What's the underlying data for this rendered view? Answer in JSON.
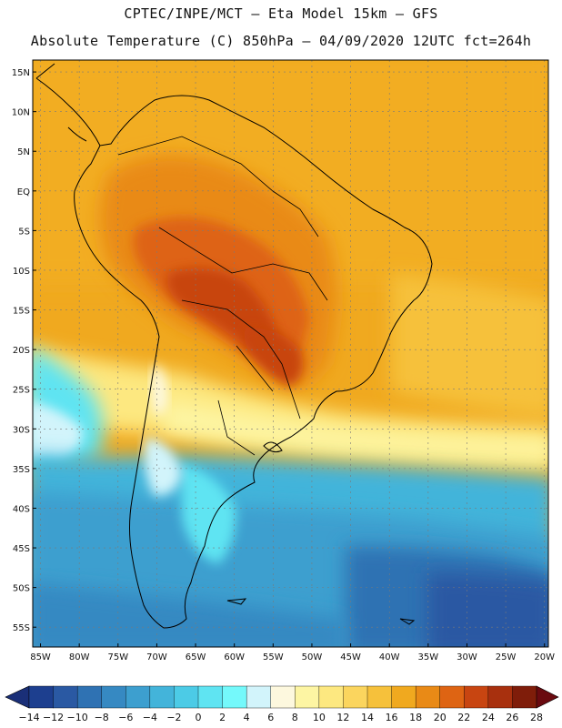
{
  "header": {
    "line1": "CPTEC/INPE/MCT –  Eta Model 15km – GFS",
    "line2": "Absolute Temperature (C) 850hPa – 04/09/2020 12UTC fct=264h"
  },
  "map": {
    "lat_labels": [
      "15N",
      "10N",
      "5N",
      "EQ",
      "5S",
      "10S",
      "15S",
      "20S",
      "25S",
      "30S",
      "35S",
      "40S",
      "45S",
      "50S",
      "55S"
    ],
    "lat_values": [
      15,
      10,
      5,
      0,
      -5,
      -10,
      -15,
      -20,
      -25,
      -30,
      -35,
      -40,
      -45,
      -50,
      -55
    ],
    "lon_labels": [
      "85W",
      "80W",
      "75W",
      "70W",
      "65W",
      "60W",
      "55W",
      "50W",
      "45W",
      "40W",
      "35W",
      "30W",
      "25W",
      "20W"
    ],
    "lon_values": [
      -85,
      -80,
      -75,
      -70,
      -65,
      -60,
      -55,
      -50,
      -45,
      -40,
      -35,
      -30,
      -25,
      -20
    ],
    "lon_range": [
      -86,
      -19.5
    ],
    "lat_range": [
      -57.5,
      16.5
    ]
  },
  "colorbar": {
    "labels": [
      "-14",
      "-12",
      "-10",
      "-8",
      "-6",
      "-4",
      "-2",
      "0",
      "2",
      "4",
      "6",
      "8",
      "10",
      "12",
      "14",
      "16",
      "18",
      "20",
      "22",
      "24",
      "26",
      "28"
    ],
    "colors": [
      "#1d3f8f",
      "#2a59a3",
      "#2f72b3",
      "#3689c2",
      "#3d9fcf",
      "#43b4da",
      "#4ccbe6",
      "#5fe4f2",
      "#74f9fb",
      "#d2f4fb",
      "#fdf8de",
      "#fdf5a3",
      "#fde880",
      "#fbd55e",
      "#f6c13b",
      "#f0a91f",
      "#e98a16",
      "#de6413",
      "#c84511",
      "#a8300e",
      "#7f1d0a"
    ],
    "under_color": "#1a2f78",
    "over_color": "#6a0a10"
  },
  "legend_colors": {
    "coastline": "#000000",
    "gridline": "#7a7a7a"
  }
}
